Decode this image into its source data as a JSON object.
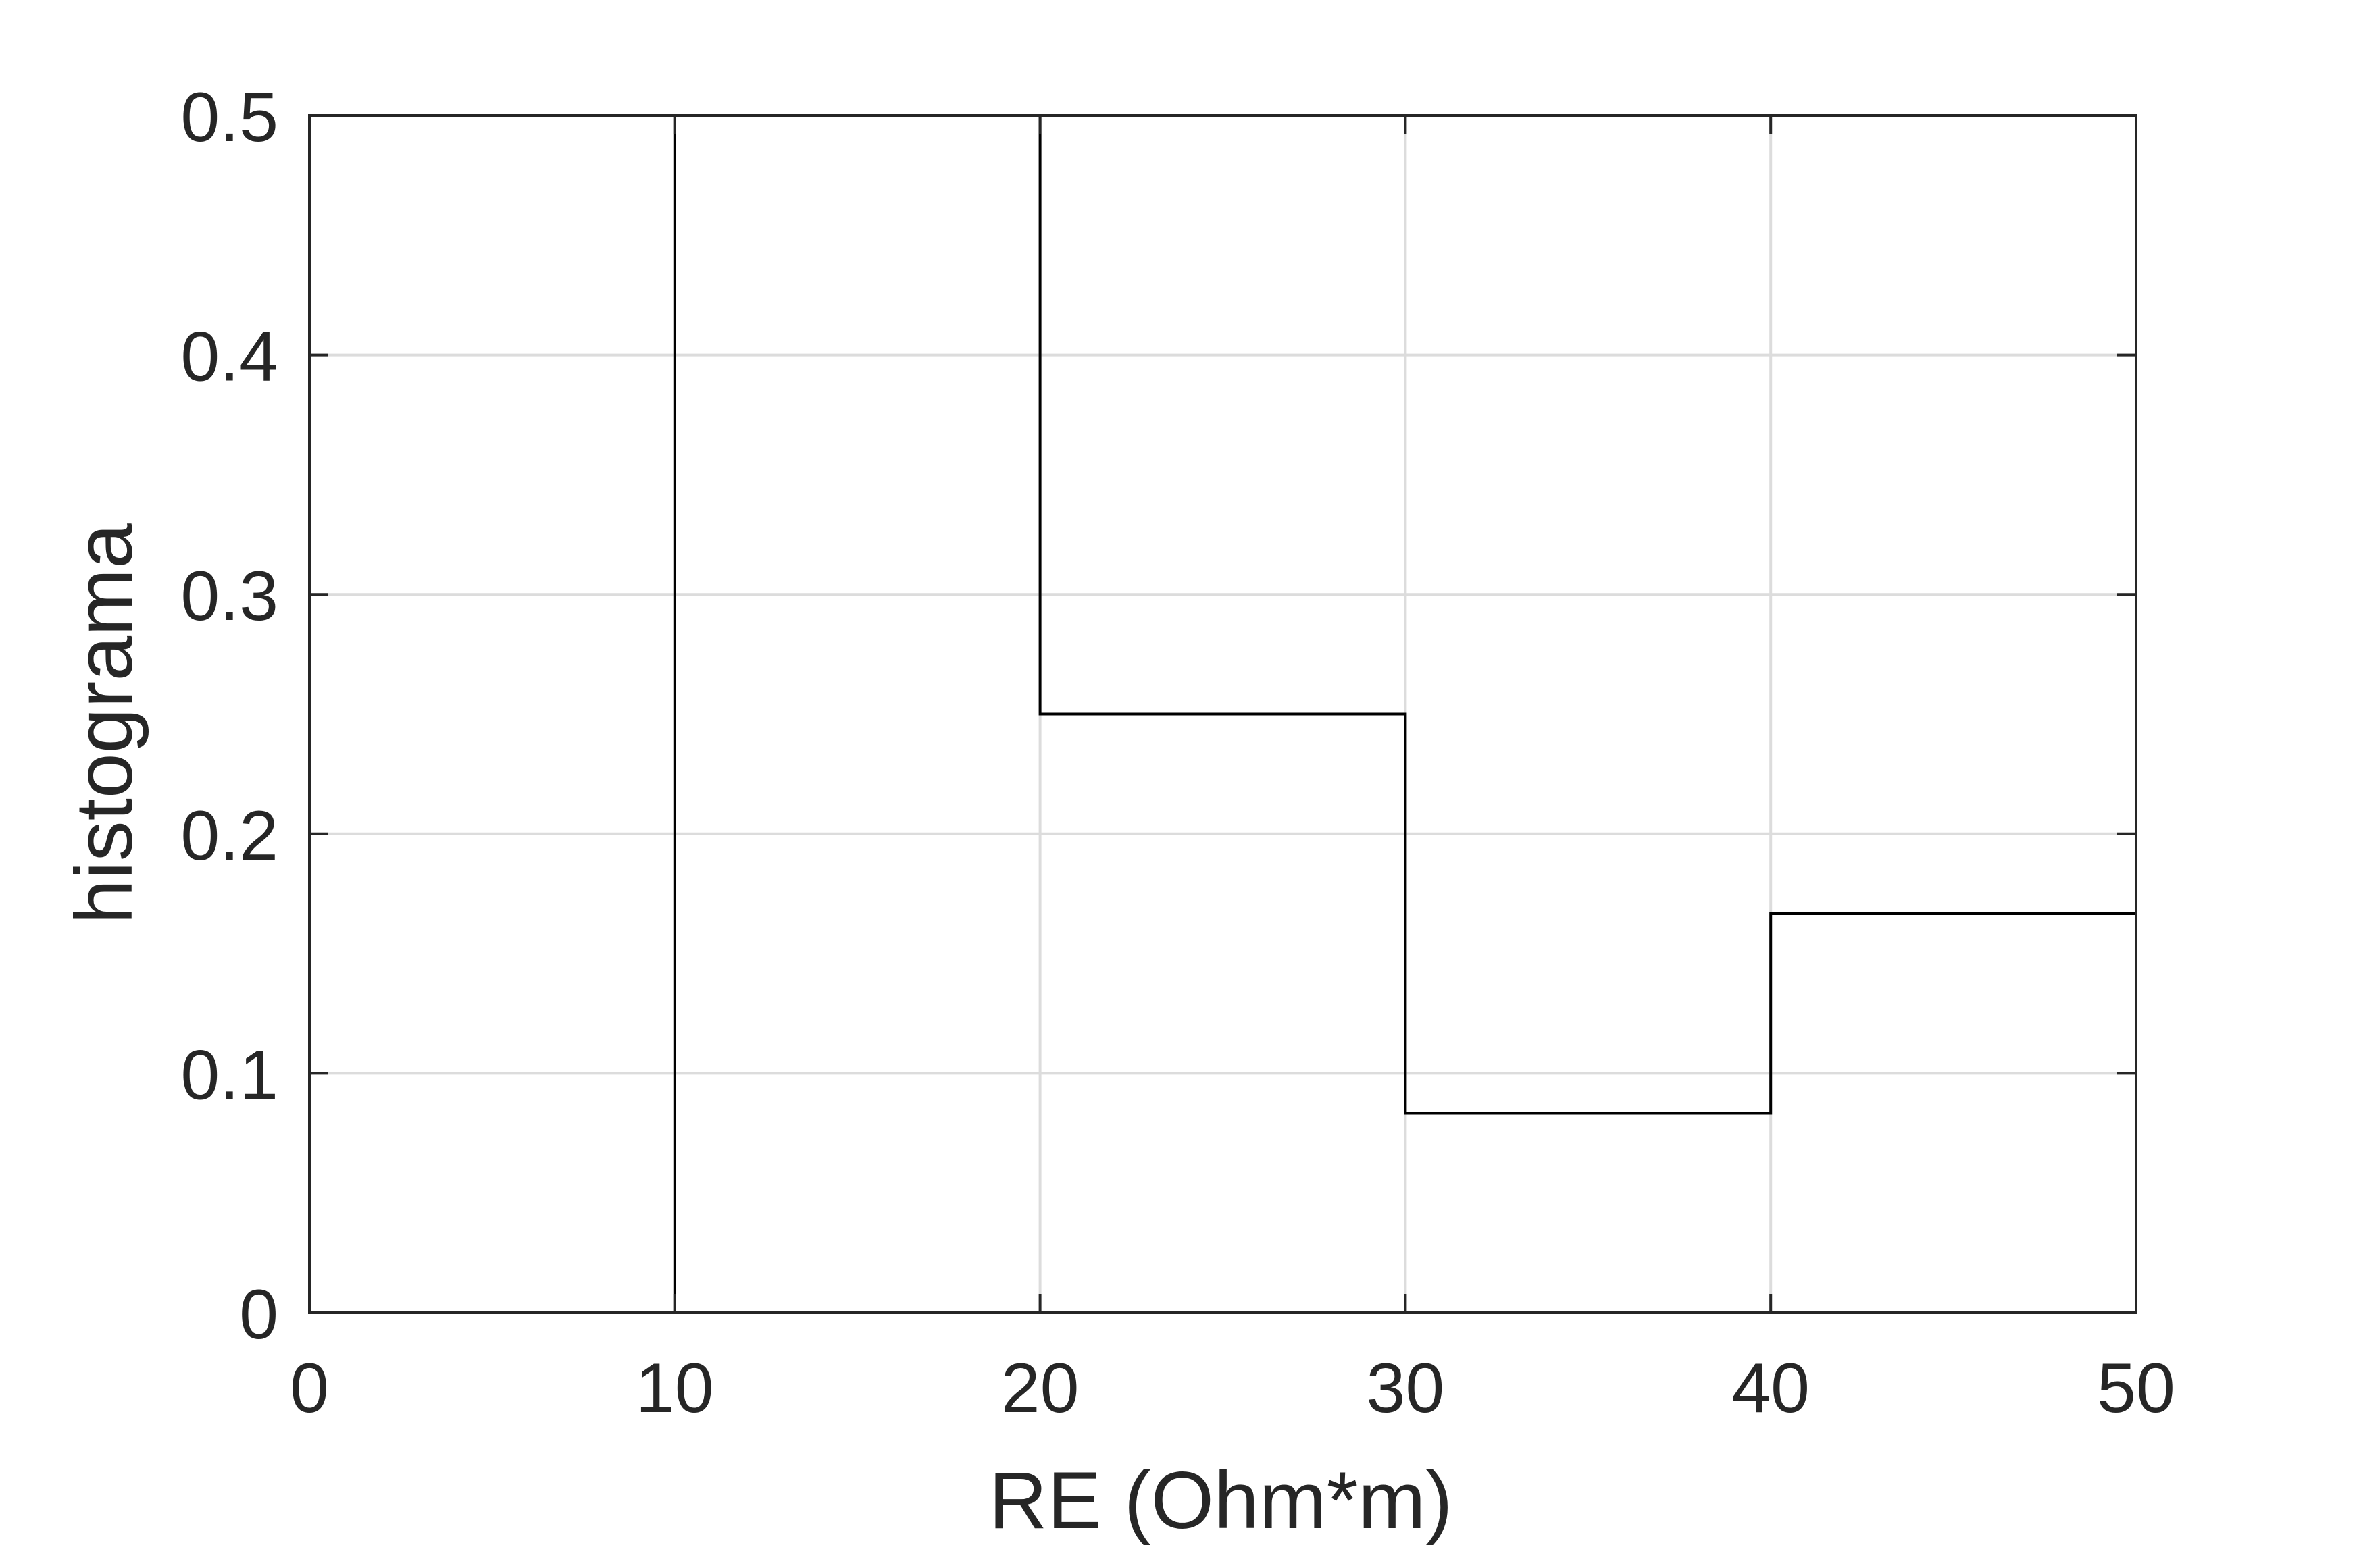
{
  "chart_data": {
    "type": "bar",
    "style": "stairs",
    "bin_edges": [
      0,
      10,
      20,
      30,
      40,
      50
    ],
    "values": [
      0,
      0.5,
      0.25,
      0.08333,
      0.16667
    ],
    "xlabel": "RE (Ohm*m)",
    "ylabel": "histograma",
    "xlim": [
      0,
      50
    ],
    "ylim": [
      0,
      0.5
    ],
    "xticks": [
      0,
      10,
      20,
      30,
      40,
      50
    ],
    "xtick_labels": [
      "0",
      "10",
      "20",
      "30",
      "40",
      "50"
    ],
    "yticks": [
      0,
      0.1,
      0.2,
      0.3,
      0.4,
      0.5
    ],
    "ytick_labels": [
      "0",
      "0.1",
      "0.2",
      "0.3",
      "0.4",
      "0.5"
    ],
    "grid": true,
    "colors": {
      "line": "#000000",
      "grid": "#dcdcdc",
      "axis": "#262626",
      "background": "#ffffff"
    }
  }
}
